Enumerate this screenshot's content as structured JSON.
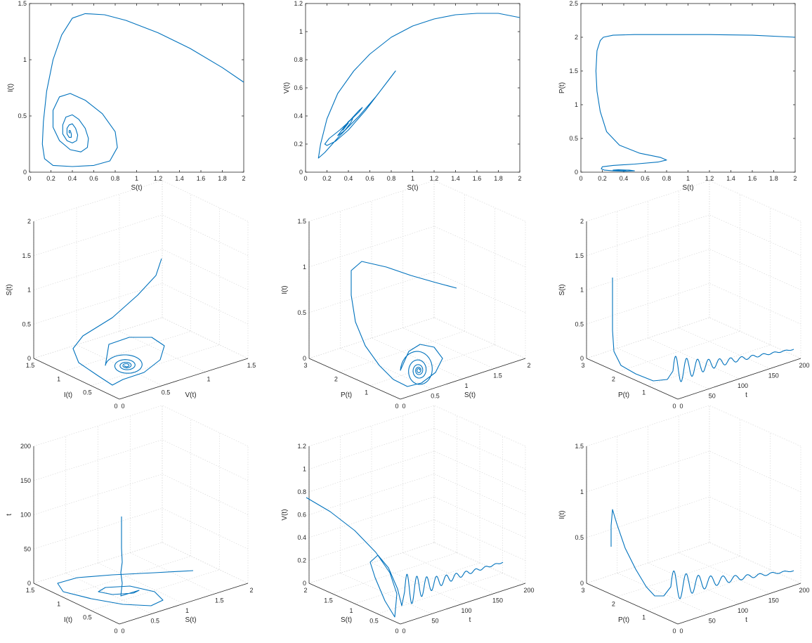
{
  "colors": {
    "line": "#0072BD",
    "axis": "#262626",
    "grid": "#d4d4d4"
  },
  "chart_data": [
    {
      "type": "line",
      "id": "p1",
      "xlabel": "S(t)",
      "ylabel": "I(t)",
      "xlim": [
        0,
        2
      ],
      "ylim": [
        0,
        1.5
      ],
      "xticks": [
        "0",
        "0.2",
        "0.4",
        "0.6",
        "0.8",
        "1",
        "1.2",
        "1.4",
        "1.6",
        "1.8",
        "2"
      ],
      "yticks": [
        "0",
        "0.5",
        "1",
        "1.5"
      ],
      "series": [
        {
          "x": [
            2,
            1.8,
            1.5,
            1.2,
            0.9,
            0.7,
            0.52,
            0.4,
            0.3,
            0.22,
            0.16,
            0.13,
            0.12,
            0.14,
            0.22,
            0.4,
            0.6,
            0.75,
            0.82,
            0.8,
            0.68,
            0.52,
            0.38,
            0.28,
            0.22,
            0.22,
            0.28,
            0.38,
            0.48,
            0.54,
            0.55,
            0.52,
            0.46,
            0.4,
            0.34,
            0.31,
            0.31,
            0.35,
            0.4,
            0.44,
            0.45,
            0.43,
            0.4,
            0.37,
            0.35,
            0.35,
            0.37,
            0.39,
            0.39,
            0.38,
            0.37,
            0.37,
            0.38
          ],
          "y": [
            0.8,
            0.93,
            1.1,
            1.24,
            1.35,
            1.4,
            1.41,
            1.37,
            1.22,
            1.0,
            0.72,
            0.45,
            0.25,
            0.12,
            0.06,
            0.05,
            0.06,
            0.1,
            0.22,
            0.36,
            0.52,
            0.64,
            0.7,
            0.67,
            0.55,
            0.4,
            0.28,
            0.2,
            0.18,
            0.22,
            0.3,
            0.39,
            0.47,
            0.51,
            0.49,
            0.42,
            0.34,
            0.28,
            0.26,
            0.28,
            0.33,
            0.39,
            0.43,
            0.42,
            0.39,
            0.34,
            0.31,
            0.31,
            0.34,
            0.37,
            0.37,
            0.35,
            0.35
          ]
        }
      ]
    },
    {
      "type": "line",
      "id": "p2",
      "xlabel": "S(t)",
      "ylabel": "V(t)",
      "xlim": [
        0,
        2
      ],
      "ylim": [
        0,
        1.2
      ],
      "xticks": [
        "0",
        "0.2",
        "0.4",
        "0.6",
        "0.8",
        "1",
        "1.2",
        "1.4",
        "1.6",
        "1.8",
        "2"
      ],
      "yticks": [
        "0",
        "0.2",
        "0.4",
        "0.6",
        "0.8",
        "1",
        "1.2"
      ],
      "series": [
        {
          "x": [
            2,
            1.8,
            1.6,
            1.4,
            1.2,
            1.0,
            0.8,
            0.6,
            0.45,
            0.3,
            0.2,
            0.14,
            0.12,
            0.18,
            0.32,
            0.5,
            0.66,
            0.78,
            0.84,
            0.82,
            0.72,
            0.56,
            0.4,
            0.28,
            0.2,
            0.18,
            0.22,
            0.32,
            0.42,
            0.5,
            0.53,
            0.5,
            0.44,
            0.37,
            0.32,
            0.3,
            0.32,
            0.37,
            0.42,
            0.44,
            0.43,
            0.4,
            0.36,
            0.34,
            0.35,
            0.38,
            0.4,
            0.39,
            0.37,
            0.36,
            0.37,
            0.38
          ],
          "y": [
            1.1,
            1.13,
            1.13,
            1.12,
            1.09,
            1.04,
            0.96,
            0.84,
            0.72,
            0.56,
            0.38,
            0.2,
            0.1,
            0.14,
            0.26,
            0.4,
            0.54,
            0.66,
            0.72,
            0.7,
            0.6,
            0.44,
            0.3,
            0.22,
            0.19,
            0.2,
            0.24,
            0.3,
            0.37,
            0.43,
            0.46,
            0.44,
            0.39,
            0.33,
            0.28,
            0.26,
            0.27,
            0.3,
            0.35,
            0.38,
            0.38,
            0.36,
            0.32,
            0.3,
            0.3,
            0.33,
            0.35,
            0.35,
            0.33,
            0.32,
            0.33,
            0.34
          ]
        }
      ]
    },
    {
      "type": "line",
      "id": "p3",
      "xlabel": "S(t)",
      "ylabel": "P(t)",
      "xlim": [
        0,
        2
      ],
      "ylim": [
        0,
        2.5
      ],
      "xticks": [
        "0",
        "0.2",
        "0.4",
        "0.6",
        "0.8",
        "1",
        "1.2",
        "1.4",
        "1.6",
        "1.8",
        "2"
      ],
      "yticks": [
        "0",
        "0.5",
        "1",
        "1.5",
        "2",
        "2.5"
      ],
      "series": [
        {
          "x": [
            2,
            1.6,
            1.2,
            0.8,
            0.5,
            0.3,
            0.21,
            0.18,
            0.15,
            0.14,
            0.15,
            0.18,
            0.24,
            0.36,
            0.55,
            0.74,
            0.8,
            0.72,
            0.5,
            0.3,
            0.2,
            0.19,
            0.22,
            0.3,
            0.4,
            0.5,
            0.45,
            0.35,
            0.3,
            0.32,
            0.38,
            0.42,
            0.4
          ],
          "y": [
            2.0,
            2.03,
            2.04,
            2.04,
            2.04,
            2.03,
            2.0,
            1.95,
            1.8,
            1.5,
            1.2,
            0.9,
            0.6,
            0.4,
            0.28,
            0.22,
            0.18,
            0.15,
            0.12,
            0.1,
            0.08,
            0.05,
            0.03,
            0.02,
            0.015,
            0.02,
            0.03,
            0.035,
            0.03,
            0.025,
            0.02,
            0.02,
            0.02
          ]
        }
      ]
    },
    {
      "type": "line3d",
      "id": "p4",
      "xlabel": "V(t)",
      "ylabel": "I(t)",
      "zlabel": "S(t)",
      "xticks": [
        "0",
        "0.5",
        "1",
        "1.5"
      ],
      "yticks": [
        "0",
        "0.5",
        "1",
        "1.5"
      ],
      "zticks": [
        "0",
        "0.5",
        "1",
        "1.5",
        "2"
      ]
    },
    {
      "type": "line3d",
      "id": "p5",
      "xlabel": "S(t)",
      "ylabel": "P(t)",
      "zlabel": "I(t)",
      "xticks": [
        "0",
        "0.5",
        "1",
        "1.5",
        "2"
      ],
      "yticks": [
        "0",
        "1",
        "2",
        "3"
      ],
      "zticks": [
        "0",
        "0.5",
        "1",
        "1.5"
      ]
    },
    {
      "type": "line3d",
      "id": "p6",
      "xlabel": "t",
      "ylabel": "P(t)",
      "zlabel": "S(t)",
      "xticks": [
        "0",
        "50",
        "100",
        "150",
        "200"
      ],
      "yticks": [
        "0",
        "1",
        "2",
        "3"
      ],
      "zticks": [
        "0",
        "0.5",
        "1",
        "1.5",
        "2"
      ]
    },
    {
      "type": "line3d",
      "id": "p7",
      "xlabel": "S(t)",
      "ylabel": "I(t)",
      "zlabel": "t",
      "xticks": [
        "0",
        "0.5",
        "1",
        "1.5",
        "2"
      ],
      "yticks": [
        "0",
        "0.5",
        "1",
        "1.5"
      ],
      "zticks": [
        "0",
        "50",
        "100",
        "150",
        "200"
      ]
    },
    {
      "type": "line3d",
      "id": "p8",
      "xlabel": "t",
      "ylabel": "S(t)",
      "zlabel": "V(t)",
      "xticks": [
        "0",
        "50",
        "100",
        "150",
        "200"
      ],
      "yticks": [
        "0",
        "0.5",
        "1",
        "1.5",
        "2"
      ],
      "zticks": [
        "0",
        "0.2",
        "0.4",
        "0.6",
        "0.8",
        "1",
        "1.2"
      ]
    },
    {
      "type": "line3d",
      "id": "p9",
      "xlabel": "t",
      "ylabel": "P(t)",
      "zlabel": "I(t)",
      "xticks": [
        "0",
        "50",
        "100",
        "150",
        "200"
      ],
      "yticks": [
        "0",
        "1",
        "2",
        "3"
      ],
      "zticks": [
        "0",
        "0.5",
        "1",
        "1.5"
      ]
    }
  ]
}
